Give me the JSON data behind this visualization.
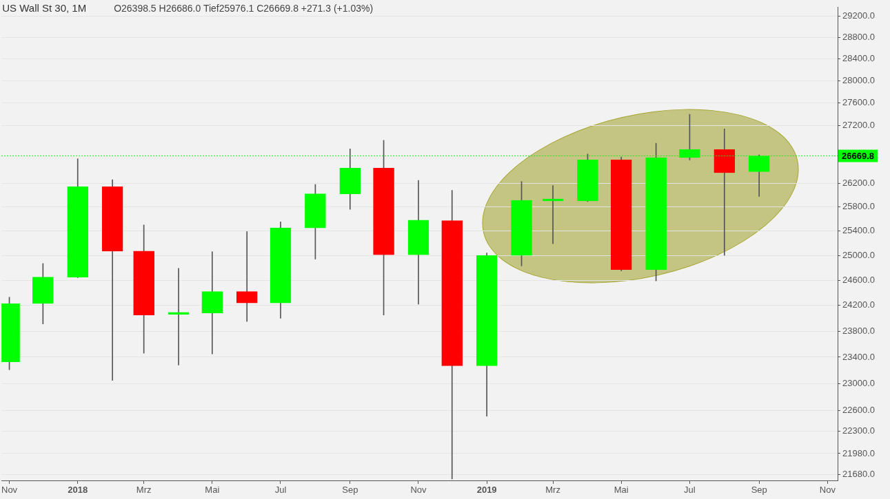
{
  "chart_data": {
    "type": "candlestick",
    "title": "US Wall St 30, 1M",
    "subtitle": "O26398.5 H26686.0 Tief25976.1 C26669.8 +271.3 (+1.03%)",
    "x": [
      "2017-11",
      "2017-12",
      "2018-01",
      "2018-02",
      "2018-03",
      "2018-04",
      "2018-05",
      "2018-06",
      "2018-07",
      "2018-08",
      "2018-09",
      "2018-10",
      "2018-11",
      "2018-12",
      "2019-01",
      "2019-02",
      "2019-03",
      "2019-04",
      "2019-05",
      "2019-06",
      "2019-07",
      "2019-08",
      "2019-09"
    ],
    "ohlc": [
      [
        23330,
        24330,
        23210,
        24230
      ],
      [
        24230,
        24870,
        23910,
        24650
      ],
      [
        24650,
        26620,
        24640,
        26140
      ],
      [
        26140,
        26260,
        23050,
        25070
      ],
      [
        25070,
        25500,
        23460,
        24050
      ],
      [
        24060,
        24790,
        23280,
        24080
      ],
      [
        24080,
        25060,
        23450,
        24420
      ],
      [
        24420,
        25390,
        23950,
        24240
      ],
      [
        24240,
        25550,
        24000,
        25450
      ],
      [
        25450,
        26180,
        24940,
        26020
      ],
      [
        26020,
        26790,
        25760,
        26460
      ],
      [
        26460,
        26940,
        24050,
        25010
      ],
      [
        25010,
        26250,
        24220,
        25580
      ],
      [
        25570,
        26080,
        21620,
        23270
      ],
      [
        23270,
        25040,
        22520,
        25000
      ],
      [
        25000,
        26230,
        24830,
        25910
      ],
      [
        25900,
        26160,
        25190,
        25920
      ],
      [
        25900,
        26700,
        25890,
        26600
      ],
      [
        26600,
        26650,
        24750,
        24770
      ],
      [
        24770,
        26890,
        24590,
        26640
      ],
      [
        26640,
        27400,
        26600,
        26780
      ],
      [
        26780,
        27140,
        25000,
        26380
      ],
      [
        26398.5,
        26686.0,
        25976.1,
        26669.8
      ]
    ],
    "colors": [
      "#00ff00",
      "#00ff00",
      "#00ff00",
      "#ff0000",
      "#ff0000",
      "#00ff00",
      "#00ff00",
      "#ff0000",
      "#00ff00",
      "#00ff00",
      "#00ff00",
      "#ff0000",
      "#00ff00",
      "#ff0000",
      "#00ff00",
      "#00ff00",
      "#00ff00",
      "#00ff00",
      "#ff0000",
      "#00ff00",
      "#00ff00",
      "#ff0000",
      "#00ff00"
    ],
    "xlim": [
      "2017-10-25",
      "2019-11-10"
    ],
    "xticks": [
      {
        "value": "2017-11",
        "label": "Nov"
      },
      {
        "value": "2018-01",
        "label": "2018"
      },
      {
        "value": "2018-03",
        "label": "Mrz"
      },
      {
        "value": "2018-05",
        "label": "Mai"
      },
      {
        "value": "2018-07",
        "label": "Jul"
      },
      {
        "value": "2018-09",
        "label": "Sep"
      },
      {
        "value": "2018-11",
        "label": "Nov"
      },
      {
        "value": "2019-01",
        "label": "2019"
      },
      {
        "value": "2019-03",
        "label": "Mrz"
      },
      {
        "value": "2019-05",
        "label": "Mai"
      },
      {
        "value": "2019-07",
        "label": "Jul"
      },
      {
        "value": "2019-09",
        "label": "Sep"
      },
      {
        "value": "2019-11",
        "label": "Nov"
      }
    ],
    "ylim": [
      21600,
      29370
    ],
    "yticks": [
      {
        "value": 29200,
        "label": "29200.0"
      },
      {
        "value": 28800,
        "label": "28800.0"
      },
      {
        "value": 28400,
        "label": "28400.0"
      },
      {
        "value": 28000,
        "label": "28000.0"
      },
      {
        "value": 27600,
        "label": "27600.0"
      },
      {
        "value": 27200,
        "label": "27200.0"
      },
      {
        "value": 26200,
        "label": "26200.0"
      },
      {
        "value": 25800,
        "label": "25800.0"
      },
      {
        "value": 25400,
        "label": "25400.0"
      },
      {
        "value": 25000,
        "label": "25000.0"
      },
      {
        "value": 24600,
        "label": "24600.0"
      },
      {
        "value": 24200,
        "label": "24200.0"
      },
      {
        "value": 23800,
        "label": "23800.0"
      },
      {
        "value": 23400,
        "label": "23400.0"
      },
      {
        "value": 23000,
        "label": "23000.0"
      },
      {
        "value": 22600,
        "label": "22600.0"
      },
      {
        "value": 22300,
        "label": "22300.0"
      },
      {
        "value": 21980,
        "label": "21980.0"
      },
      {
        "value": 21680,
        "label": "21680.0"
      }
    ],
    "log": true,
    "grid": "y",
    "ref_lines": [
      {
        "axis": "y",
        "value": 26669.8,
        "label": "26669.8",
        "color": "#00ff00",
        "line_style": "dotted"
      }
    ]
  }
}
